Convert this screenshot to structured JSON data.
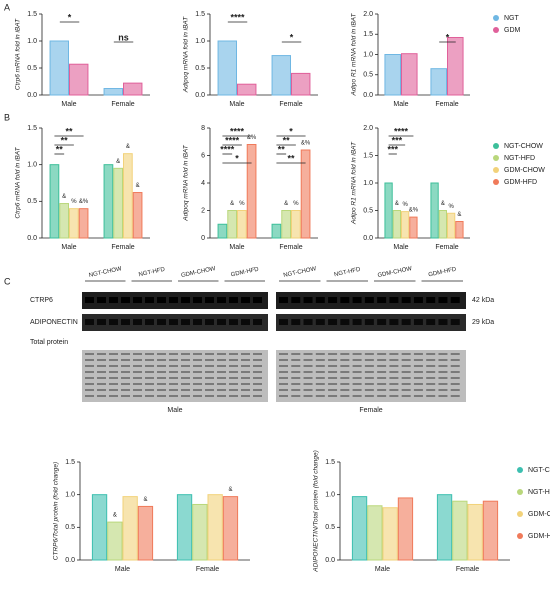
{
  "panels": [
    "A",
    "B",
    "C"
  ],
  "chart_data": [
    {
      "type": "bar",
      "ylabel": "Ctrp6 mRNA fold in iBAT",
      "categories": [
        "Male",
        "Female"
      ],
      "series": [
        {
          "name": "NGT",
          "color": "#6fb7e3",
          "values": [
            1.0,
            0.12
          ]
        },
        {
          "name": "GDM",
          "color": "#e0609a",
          "values": [
            0.57,
            0.22
          ]
        }
      ],
      "ylim": [
        0,
        1.5
      ],
      "yticks": [
        {
          "value": 0,
          "label": "0.0"
        },
        0.5,
        {
          "value": 1,
          "label": "1.0"
        },
        1.5
      ],
      "annotations": [
        "*",
        "ns"
      ]
    },
    {
      "type": "bar",
      "ylabel": "Adipoq mRNA fold in iBAT",
      "categories": [
        "Male",
        "Female"
      ],
      "series": [
        {
          "name": "NGT",
          "color": "#6fb7e3",
          "values": [
            1.0,
            0.73
          ]
        },
        {
          "name": "GDM",
          "color": "#e0609a",
          "values": [
            0.2,
            0.4
          ]
        }
      ],
      "ylim": [
        0,
        1.5
      ],
      "yticks": [
        {
          "value": 0,
          "label": "0.0"
        },
        0.5,
        {
          "value": 1,
          "label": "1.0"
        },
        1.5
      ],
      "annotations": [
        "****",
        "*"
      ]
    },
    {
      "type": "bar",
      "ylabel": "Adipo R1 mRNA fold in iBAT",
      "categories": [
        "Male",
        "Female"
      ],
      "series": [
        {
          "name": "NGT",
          "color": "#6fb7e3",
          "values": [
            1.0,
            0.65
          ]
        },
        {
          "name": "GDM",
          "color": "#e0609a",
          "values": [
            1.02,
            1.42
          ]
        }
      ],
      "ylim": [
        0,
        2
      ],
      "yticks": [
        {
          "value": 0,
          "label": "0.0"
        },
        0.5,
        {
          "value": 1,
          "label": "1.0"
        },
        1.5,
        {
          "value": 2,
          "label": "2.0"
        }
      ],
      "annotations": [
        null,
        "*"
      ]
    },
    {
      "type": "bar",
      "ylabel": "Ctrp6 mRNA fold in iBAT",
      "categories": [
        "Male",
        "Female"
      ],
      "series": [
        {
          "name": "NGT-CHOW",
          "color": "#3dbf9a",
          "values": [
            1.0,
            1.0
          ]
        },
        {
          "name": "NGT-HFD",
          "color": "#b9d77b",
          "values": [
            0.47,
            0.95
          ],
          "marks": [
            "&",
            "&"
          ]
        },
        {
          "name": "GDM-CHOW",
          "color": "#f2d27a",
          "values": [
            0.4,
            1.15
          ],
          "marks": [
            "%",
            "&"
          ]
        },
        {
          "name": "GDM-HFD",
          "color": "#f07a5a",
          "values": [
            0.4,
            0.62
          ],
          "marks": [
            "&%",
            "&"
          ]
        }
      ],
      "ylim": [
        0,
        1.5
      ],
      "yticks": [
        {
          "value": 0,
          "label": "0.0"
        },
        0.5,
        {
          "value": 1,
          "label": "1.0"
        },
        1.5
      ],
      "annotations": [
        "**",
        "**",
        "**"
      ]
    },
    {
      "type": "bar",
      "ylabel": "Adipoq mRNA fold in iBAT",
      "categories": [
        "Male",
        "Female"
      ],
      "series": [
        {
          "name": "NGT-CHOW",
          "color": "#3dbf9a",
          "values": [
            1.0,
            1.0
          ]
        },
        {
          "name": "NGT-HFD",
          "color": "#b9d77b",
          "values": [
            2.0,
            2.0
          ],
          "marks": [
            "&",
            "&"
          ]
        },
        {
          "name": "GDM-CHOW",
          "color": "#f2d27a",
          "values": [
            2.0,
            2.0
          ],
          "marks": [
            "%",
            "%"
          ]
        },
        {
          "name": "GDM-HFD",
          "color": "#f07a5a",
          "values": [
            6.8,
            6.4
          ],
          "marks": [
            "&%",
            "&%"
          ]
        }
      ],
      "ylim": [
        0,
        8
      ],
      "yticks": [
        0,
        2,
        4,
        6,
        8
      ],
      "annotations": [
        "****",
        "****",
        "****",
        "*",
        "*",
        "**",
        "**",
        "**"
      ]
    },
    {
      "type": "bar",
      "ylabel": "Adipo R1 mRNA fold in iBAT",
      "categories": [
        "Male",
        "Female"
      ],
      "series": [
        {
          "name": "NGT-CHOW",
          "color": "#3dbf9a",
          "values": [
            1.0,
            1.0
          ]
        },
        {
          "name": "NGT-HFD",
          "color": "#b9d77b",
          "values": [
            0.5,
            0.5
          ],
          "marks": [
            "&",
            "&"
          ]
        },
        {
          "name": "GDM-CHOW",
          "color": "#f2d27a",
          "values": [
            0.48,
            0.45
          ],
          "marks": [
            "%",
            "%"
          ]
        },
        {
          "name": "GDM-HFD",
          "color": "#f07a5a",
          "values": [
            0.38,
            0.3
          ],
          "marks": [
            "&%",
            "&"
          ]
        }
      ],
      "ylim": [
        0,
        2
      ],
      "yticks": [
        {
          "value": 0,
          "label": "0.0"
        },
        0.5,
        {
          "value": 1,
          "label": "1.0"
        },
        1.5,
        {
          "value": 2,
          "label": "2.0"
        }
      ],
      "annotations": [
        "****",
        "***",
        "***"
      ]
    },
    {
      "type": "bar",
      "ylabel": "CTRP6/Total protein (fold change)",
      "categories": [
        "Male",
        "Female"
      ],
      "series": [
        {
          "name": "NGT-CHOW",
          "color": "#3dbfb0",
          "values": [
            1.0,
            1.0
          ]
        },
        {
          "name": "NGT-HFD",
          "color": "#b9d77b",
          "values": [
            0.58,
            0.85
          ],
          "marks": [
            "&",
            null
          ]
        },
        {
          "name": "GDM-CHOW",
          "color": "#f2d27a",
          "values": [
            0.97,
            1.0
          ]
        },
        {
          "name": "GDM-HFD",
          "color": "#f07a5a",
          "values": [
            0.82,
            0.97
          ],
          "marks": [
            "&",
            "&"
          ]
        }
      ],
      "ylim": [
        0,
        1.5
      ],
      "yticks": [
        {
          "value": 0,
          "label": "0.0"
        },
        0.5,
        {
          "value": 1,
          "label": "1.0"
        },
        1.5
      ]
    },
    {
      "type": "bar",
      "ylabel": "ADIPONECTIN/Total protein (fold change)",
      "categories": [
        "Male",
        "Female"
      ],
      "series": [
        {
          "name": "NGT-CHOW",
          "color": "#3dbfb0",
          "values": [
            0.97,
            1.0
          ]
        },
        {
          "name": "NGT-HFD",
          "color": "#b9d77b",
          "values": [
            0.83,
            0.9
          ]
        },
        {
          "name": "GDM-CHOW",
          "color": "#f2d27a",
          "values": [
            0.8,
            0.85
          ]
        },
        {
          "name": "GDM-HFD",
          "color": "#f07a5a",
          "values": [
            0.95,
            0.9
          ]
        }
      ],
      "ylim": [
        0,
        1.5
      ],
      "yticks": [
        {
          "value": 0,
          "label": "0.0"
        },
        0.5,
        {
          "value": 1,
          "label": "1.0"
        },
        1.5
      ]
    }
  ],
  "blot": {
    "groups_left": [
      "NGT-CHOW",
      "NGT-HFD",
      "GDM-CHOW",
      "GDM-HFD"
    ],
    "groups_right": [
      "NGT-CHOW",
      "NGT-HFD",
      "GDM-CHOW",
      "GDM-HFD"
    ],
    "rows": [
      "CTRP6",
      "ADIPONECTIN",
      "Total protein"
    ],
    "sizes": [
      "42 kDa",
      "29 kDa"
    ],
    "sexes": [
      "Male",
      "Female"
    ]
  }
}
